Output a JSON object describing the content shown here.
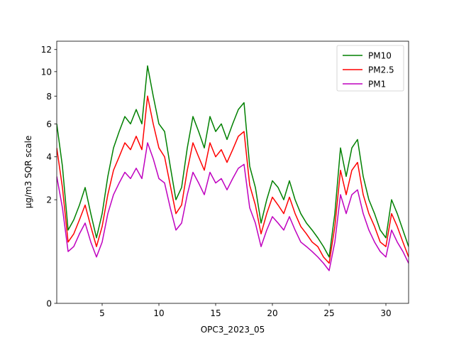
{
  "chart_data": {
    "type": "line",
    "title": "",
    "xlabel": "OPC3_2023_05",
    "ylabel": "µg/m3 SQR scale",
    "xlim": [
      1,
      32
    ],
    "ylim": [
      0,
      12.8
    ],
    "y_scale": "sqrt",
    "x_ticks": [
      5,
      10,
      15,
      20,
      25,
      30
    ],
    "x_tick_labels": [
      "5",
      "10",
      "15",
      "20",
      "25",
      "30"
    ],
    "y_ticks": [
      0,
      2,
      4,
      6,
      8,
      10,
      12
    ],
    "y_tick_labels": [
      "0",
      "2",
      "4",
      "6",
      "8",
      "10",
      "12"
    ],
    "grid": false,
    "legend_position": "top-right",
    "x": [
      1.0,
      1.5,
      2.0,
      2.5,
      3.0,
      3.5,
      4.0,
      4.5,
      5.0,
      5.5,
      6.0,
      6.5,
      7.0,
      7.5,
      8.0,
      8.5,
      9.0,
      9.5,
      10.0,
      10.5,
      11.0,
      11.5,
      12.0,
      12.5,
      13.0,
      13.5,
      14.0,
      14.5,
      15.0,
      15.5,
      16.0,
      16.5,
      17.0,
      17.5,
      18.0,
      18.5,
      19.0,
      19.5,
      20.0,
      20.5,
      21.0,
      21.5,
      22.0,
      22.5,
      23.0,
      23.5,
      24.0,
      24.5,
      25.0,
      25.5,
      26.0,
      26.5,
      27.0,
      27.5,
      28.0,
      28.5,
      29.0,
      29.5,
      30.0,
      30.5,
      31.0,
      31.5,
      32.0
    ],
    "series": [
      {
        "name": "PM10",
        "color": "#008000",
        "values": [
          6.0,
          3.5,
          1.0,
          1.3,
          1.8,
          2.5,
          1.5,
          0.8,
          1.5,
          3.0,
          4.5,
          5.5,
          6.5,
          6.0,
          7.0,
          6.0,
          10.5,
          8.0,
          6.0,
          5.5,
          3.5,
          2.0,
          2.5,
          4.5,
          6.5,
          5.5,
          4.5,
          6.5,
          5.5,
          6.0,
          5.0,
          6.0,
          7.0,
          7.5,
          3.5,
          2.5,
          1.2,
          2.0,
          2.8,
          2.5,
          2.0,
          2.8,
          2.0,
          1.5,
          1.2,
          1.0,
          0.8,
          0.6,
          0.4,
          1.5,
          4.5,
          3.0,
          4.5,
          5.0,
          3.0,
          2.0,
          1.5,
          1.0,
          0.8,
          2.0,
          1.5,
          1.0,
          0.6
        ]
      },
      {
        "name": "PM2.5",
        "color": "#ff0000",
        "values": [
          4.5,
          2.5,
          0.7,
          0.9,
          1.3,
          1.8,
          1.1,
          0.6,
          1.1,
          2.2,
          3.3,
          4.0,
          4.8,
          4.4,
          5.2,
          4.4,
          8.0,
          6.0,
          4.5,
          4.0,
          2.6,
          1.5,
          1.8,
          3.3,
          4.8,
          4.0,
          3.3,
          4.8,
          4.0,
          4.4,
          3.7,
          4.4,
          5.2,
          5.5,
          2.6,
          1.8,
          0.9,
          1.5,
          2.1,
          1.8,
          1.5,
          2.1,
          1.5,
          1.1,
          0.9,
          0.7,
          0.6,
          0.4,
          0.3,
          1.1,
          3.3,
          2.2,
          3.3,
          3.7,
          2.2,
          1.5,
          1.1,
          0.7,
          0.6,
          1.5,
          1.1,
          0.7,
          0.4
        ]
      },
      {
        "name": "PM1",
        "color": "#bf00bf",
        "values": [
          3.0,
          1.7,
          0.5,
          0.6,
          0.9,
          1.2,
          0.7,
          0.4,
          0.7,
          1.5,
          2.2,
          2.7,
          3.2,
          2.9,
          3.4,
          2.9,
          4.8,
          3.9,
          2.9,
          2.7,
          1.7,
          1.0,
          1.2,
          2.2,
          3.2,
          2.7,
          2.2,
          3.2,
          2.7,
          2.9,
          2.4,
          2.9,
          3.4,
          3.6,
          1.7,
          1.2,
          0.6,
          1.0,
          1.4,
          1.2,
          1.0,
          1.4,
          1.0,
          0.7,
          0.6,
          0.5,
          0.4,
          0.3,
          0.2,
          0.7,
          2.2,
          1.5,
          2.2,
          2.4,
          1.5,
          1.0,
          0.7,
          0.5,
          0.4,
          1.0,
          0.7,
          0.5,
          0.3
        ]
      }
    ]
  }
}
